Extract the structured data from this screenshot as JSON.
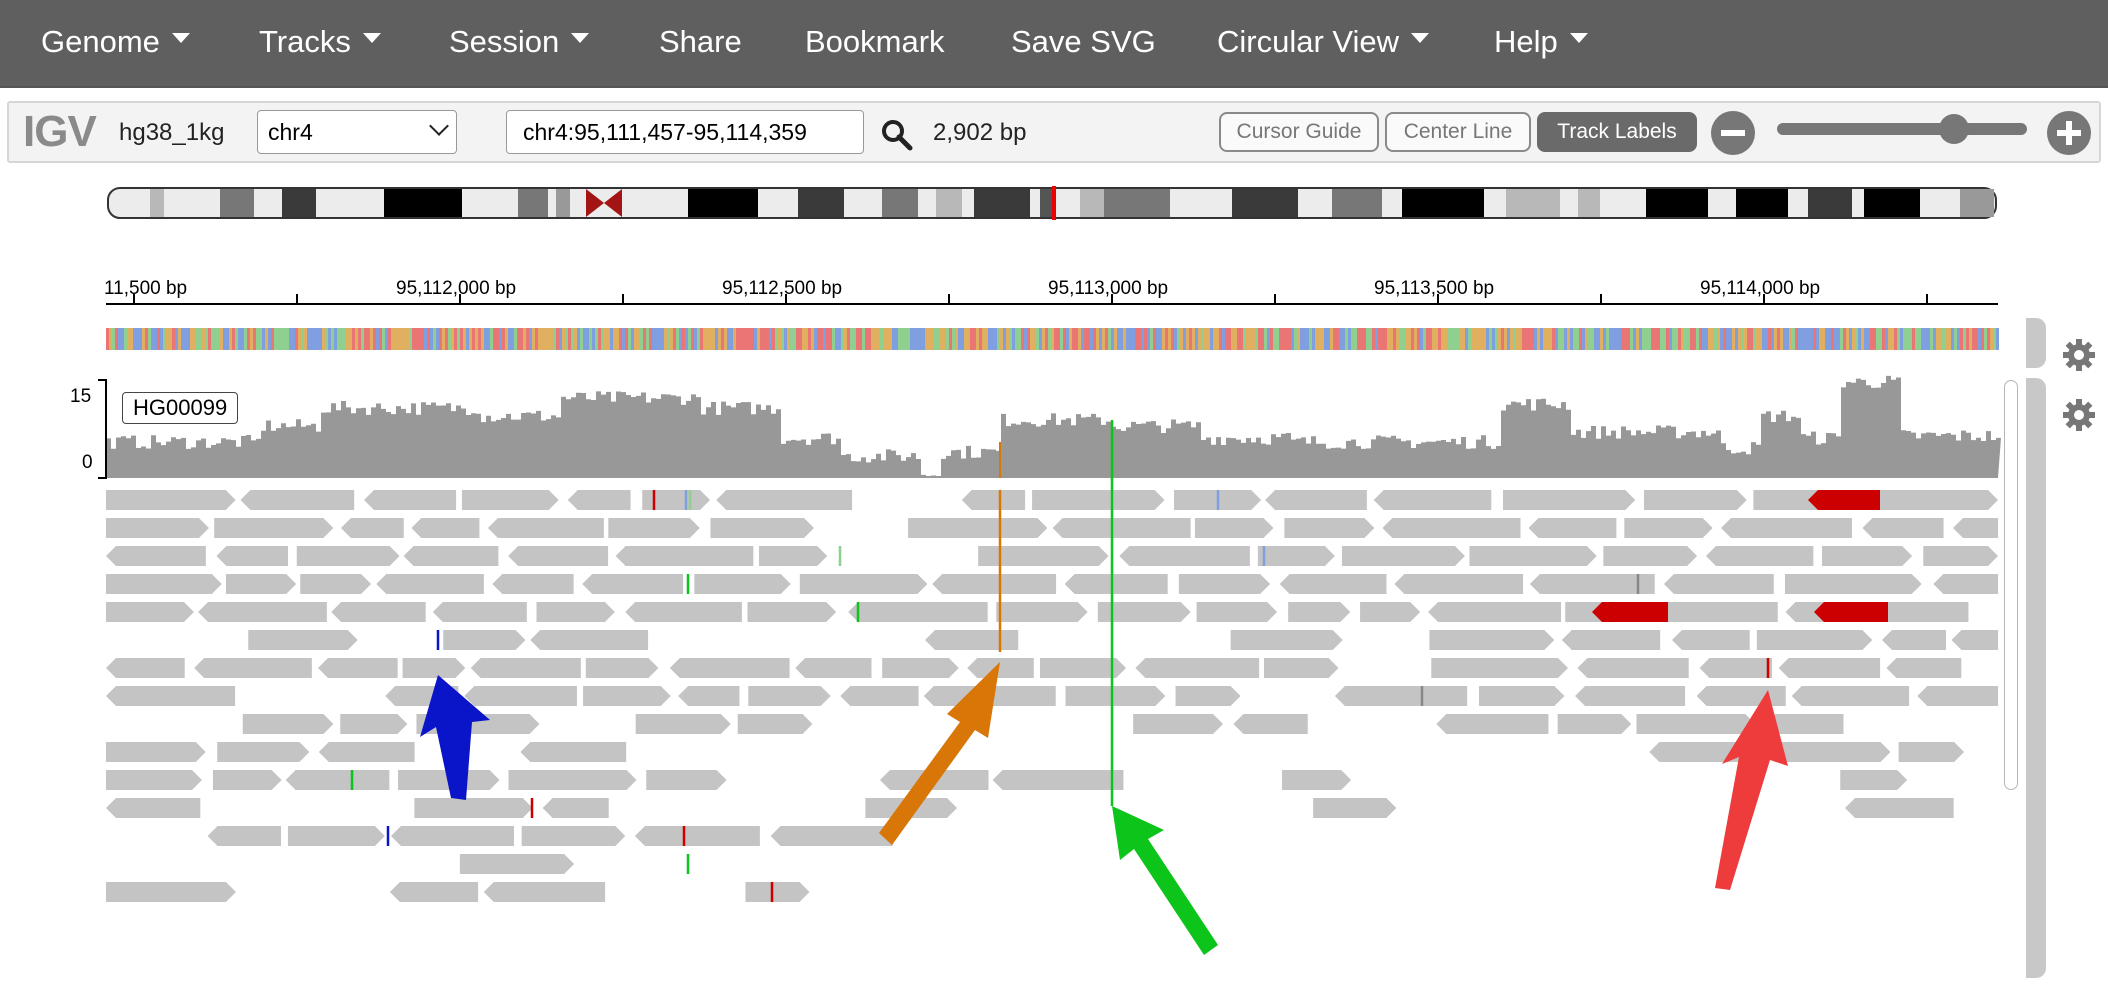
{
  "menu": {
    "items": [
      {
        "label": "Genome",
        "dropdown": true
      },
      {
        "label": "Tracks",
        "dropdown": true
      },
      {
        "label": "Session",
        "dropdown": true
      },
      {
        "label": "Share",
        "dropdown": false
      },
      {
        "label": "Bookmark",
        "dropdown": false
      },
      {
        "label": "Save SVG",
        "dropdown": false
      },
      {
        "label": "Circular View",
        "dropdown": true
      },
      {
        "label": "Help",
        "dropdown": true
      }
    ]
  },
  "navbar": {
    "logo": "IGV",
    "genome": "hg38_1kg",
    "chromosome": "chr4",
    "locus": "chr4:95,111,457-95,114,359",
    "window_size": "2,902 bp",
    "buttons": {
      "cursor_guide": "Cursor Guide",
      "center_line": "Center Line",
      "track_labels": "Track Labels"
    },
    "track_labels_active": true,
    "zoom_level_fraction": 0.8
  },
  "ruler": {
    "ticks": [
      "11,500 bp",
      "95,112,000 bp",
      "95,112,500 bp",
      "95,113,000 bp",
      "95,113,500 bp",
      "95,114,000 bp"
    ]
  },
  "alignment_track": {
    "label": "HG00099",
    "coverage_max": "15",
    "coverage_min": "0"
  },
  "colors": {
    "menubar": "#5f5f5f",
    "read": "#c4c4c4",
    "coverage": "#989898",
    "mismatch_read": "#cc0000",
    "cytoband_centromere": "#a31515",
    "arrow_blue": "#0a14c8",
    "arrow_orange": "#d97608",
    "arrow_green": "#0cc41a",
    "arrow_red": "#ee3b3b"
  },
  "annotations": {
    "arrows": [
      "blue-arrow",
      "orange-arrow",
      "green-arrow",
      "red-arrow"
    ]
  }
}
